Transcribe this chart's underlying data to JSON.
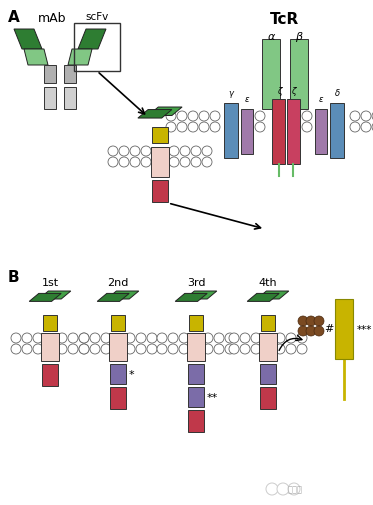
{
  "bg_color": "#ffffff",
  "colors": {
    "dark_green": "#2e7d32",
    "light_green": "#81c784",
    "med_green": "#43a047",
    "yellow": "#c8b400",
    "pink_tm": "#f0d0c8",
    "red": "#c0384a",
    "purple": "#7b6ca8",
    "blue_cd3": "#5b8db8",
    "purple_cd3": "#a07aaa",
    "gray": "#b0b0b0",
    "light_gray": "#d0d0d0",
    "brown": "#7a4a22"
  },
  "label_a": "A",
  "label_b": "B",
  "label_mab": "mAb",
  "label_tcr": "TcR",
  "label_scfv": "scFv",
  "label_alpha": "α",
  "label_beta": "β",
  "label_gamma": "γ",
  "label_eps": "ε",
  "label_zeta": "ζ",
  "label_delta": "δ",
  "generations": [
    "1st",
    "2nd",
    "3rd",
    "4th"
  ],
  "hash_label": "#",
  "triple_star": "***"
}
